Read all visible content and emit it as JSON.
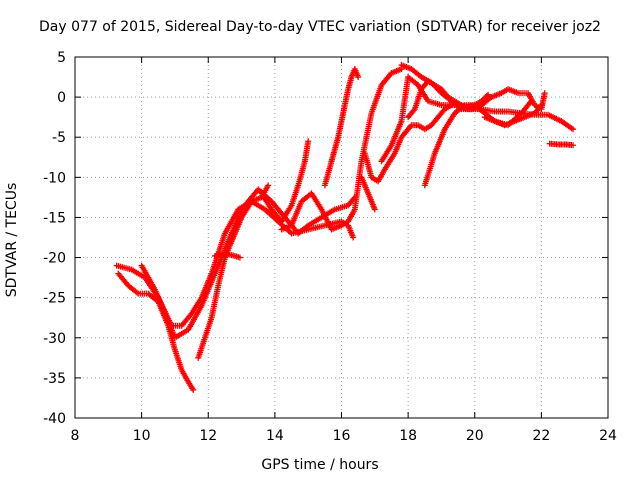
{
  "chart_data": {
    "type": "scatter",
    "title": "Day 077 of 2015, Sidereal Day-to-day VTEC variation (SDTVAR) for receiver joz2",
    "xlabel": "GPS time / hours",
    "ylabel": "SDTVAR / TECUs",
    "xlim": [
      8,
      24
    ],
    "ylim": [
      -40,
      5
    ],
    "xticks": [
      8,
      10,
      12,
      14,
      16,
      18,
      20,
      22,
      24
    ],
    "yticks": [
      -40,
      -35,
      -30,
      -25,
      -20,
      -15,
      -10,
      -5,
      0,
      5
    ],
    "grid": true,
    "marker": "+",
    "color": "#ff0000",
    "series": [
      {
        "name": "s1",
        "x": [
          9.25,
          9.7,
          10.1,
          10.5,
          10.9,
          11.2,
          11.5,
          11.8,
          12.1,
          12.5,
          12.9,
          13.3,
          13.7,
          14.1,
          14.5,
          15.0,
          15.5,
          16.0,
          16.2,
          16.35
        ],
        "y": [
          -21,
          -21.5,
          -22.5,
          -25,
          -28.5,
          -28.5,
          -27,
          -25,
          -22,
          -17,
          -14,
          -13,
          -14,
          -15.5,
          -17,
          -16.5,
          -16,
          -15.5,
          -16,
          -17.5
        ]
      },
      {
        "name": "s2",
        "x": [
          9.3,
          9.6,
          9.9,
          10.2,
          10.5,
          10.8,
          11.0,
          11.2,
          11.4,
          11.55
        ],
        "y": [
          -22,
          -23.5,
          -24.5,
          -24.5,
          -25.5,
          -28.5,
          -31.5,
          -34,
          -35.5,
          -36.5
        ]
      },
      {
        "name": "s3",
        "x": [
          10.0,
          10.4,
          10.8,
          11.0,
          11.4,
          11.8,
          12.2,
          12.6,
          13.0,
          13.5,
          13.9,
          14.3,
          14.7,
          15.0,
          15.4,
          15.8,
          16.2,
          16.4
        ],
        "y": [
          -21,
          -24,
          -28,
          -30,
          -29,
          -26,
          -22,
          -18,
          -14,
          -11.5,
          -13,
          -15,
          -17,
          -16,
          -15,
          -14,
          -13.5,
          -12.5
        ]
      },
      {
        "name": "s4",
        "x": [
          11.7,
          11.9,
          12.1,
          12.3,
          12.5,
          12.7,
          13.0,
          13.3,
          13.6,
          13.8
        ],
        "y": [
          -32.5,
          -30,
          -27.5,
          -23.5,
          -20,
          -18,
          -15,
          -13,
          -12.5,
          -11
        ]
      },
      {
        "name": "s5",
        "x": [
          12.2,
          12.5,
          12.8,
          12.95
        ],
        "y": [
          -19.8,
          -19.5,
          -19.8,
          -20
        ]
      },
      {
        "name": "s6",
        "x": [
          13.6,
          13.9,
          14.2,
          14.5,
          14.7,
          14.9,
          15.0
        ],
        "y": [
          -12,
          -14,
          -15.5,
          -13.5,
          -11,
          -8,
          -5.5
        ]
      },
      {
        "name": "s7",
        "x": [
          14.2,
          14.5,
          14.8,
          15.1,
          15.4,
          15.7,
          16.0,
          16.2,
          16.4,
          16.6,
          16.9,
          17.2,
          17.5,
          17.8
        ],
        "y": [
          -16.5,
          -16,
          -13,
          -12,
          -14,
          -16.5,
          -16,
          -15.5,
          -14,
          -8,
          -2,
          1.5,
          3,
          3.5
        ]
      },
      {
        "name": "s8",
        "x": [
          15.5,
          15.7,
          15.8,
          15.9,
          16.0,
          16.1,
          16.2,
          16.3,
          16.4,
          16.5
        ],
        "y": [
          -11,
          -8,
          -6.5,
          -5,
          -3,
          -1,
          1,
          2.5,
          3.5,
          2.5
        ]
      },
      {
        "name": "s9",
        "x": [
          16.6,
          16.75,
          16.9,
          17.0
        ],
        "y": [
          -10,
          -11.5,
          -13,
          -14
        ]
      },
      {
        "name": "s10",
        "x": [
          16.7,
          16.9,
          17.1,
          17.3,
          17.6,
          17.8,
          18.1,
          18.3,
          18.5,
          18.7,
          18.9,
          19.1,
          19.3
        ],
        "y": [
          -7,
          -10,
          -10.5,
          -9,
          -7,
          -5,
          -3.5,
          -3.5,
          -4,
          -3.5,
          -2.5,
          -1.5,
          -1
        ]
      },
      {
        "name": "s11",
        "x": [
          17.2,
          17.5,
          17.8,
          18.0,
          18.3,
          18.6,
          19.0,
          19.4,
          19.8,
          20.2,
          20.6,
          21.0,
          21.4,
          21.8,
          22.2,
          22.6,
          22.95
        ],
        "y": [
          -8,
          -6,
          -3,
          2.5,
          1.5,
          -0.5,
          -1,
          -1,
          -1.5,
          -1.5,
          -1.8,
          -1.8,
          -2,
          -2.2,
          -2.2,
          -3,
          -4
        ]
      },
      {
        "name": "s12",
        "x": [
          17.8,
          18.1,
          18.4,
          18.7,
          19.0,
          19.3,
          19.6,
          19.9,
          20.2,
          20.5,
          20.8,
          21.0,
          21.3,
          21.6,
          21.8,
          22.0,
          22.1
        ],
        "y": [
          4,
          3.5,
          2.5,
          1.8,
          0.5,
          -0.5,
          -1.5,
          -1.5,
          -1.0,
          0,
          0.5,
          1,
          0.5,
          0.5,
          -1,
          -1.5,
          0.5
        ]
      },
      {
        "name": "s13",
        "x": [
          18.5,
          18.8,
          19.1,
          19.4,
          19.7,
          20.0,
          20.3,
          20.6,
          21.0,
          21.4,
          21.7
        ],
        "y": [
          -11,
          -7,
          -4,
          -2,
          -1,
          -1,
          -2,
          -3,
          -3.5,
          -2,
          -0.5
        ]
      },
      {
        "name": "s14",
        "x": [
          18.0,
          18.2,
          18.4,
          18.6,
          18.8,
          19.0,
          19.2,
          19.4,
          19.6,
          19.8,
          20.0,
          20.2,
          20.4
        ],
        "y": [
          -2.5,
          -1.5,
          1,
          2,
          1.5,
          1.0,
          0,
          -0.5,
          -1,
          -1.2,
          -1,
          -0.5,
          0.3
        ]
      },
      {
        "name": "s15",
        "x": [
          20.3,
          20.6,
          20.9,
          21.2,
          21.5,
          21.8,
          22.0
        ],
        "y": [
          -2.5,
          -3,
          -3.5,
          -3,
          -2.5,
          -2,
          -1
        ]
      },
      {
        "name": "s16",
        "x": [
          22.25,
          22.5,
          22.75,
          22.95
        ],
        "y": [
          -5.8,
          -5.9,
          -5.9,
          -6
        ]
      }
    ]
  }
}
